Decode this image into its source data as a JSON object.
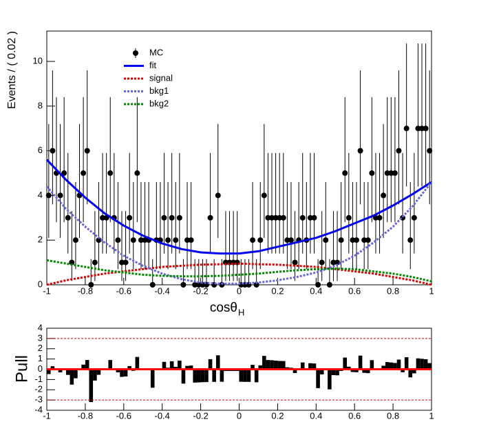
{
  "chart_data": [
    {
      "type": "scatter",
      "xlabel": "cosθ",
      "xlabel_sub": "H",
      "ylabel": "Events / ( 0.02 )",
      "xlim": [
        -1,
        1
      ],
      "xticks": [
        -1,
        -0.8,
        -0.6,
        -0.4,
        -0.2,
        0,
        0.2,
        0.4,
        0.6,
        0.8,
        1
      ],
      "ylim": [
        0,
        11.36
      ],
      "yticks": [
        0,
        2,
        4,
        6,
        8,
        10
      ],
      "curve_x": [
        -1,
        -0.9,
        -0.8,
        -0.7,
        -0.6,
        -0.5,
        -0.4,
        -0.3,
        -0.2,
        -0.1,
        0,
        0.1,
        0.2,
        0.3,
        0.4,
        0.5,
        0.6,
        0.7,
        0.8,
        0.9,
        1
      ],
      "series": [
        {
          "name": "MC",
          "color": "#000000",
          "x": [
            -0.99,
            -0.97,
            -0.95,
            -0.93,
            -0.91,
            -0.89,
            -0.87,
            -0.85,
            -0.83,
            -0.81,
            -0.79,
            -0.77,
            -0.75,
            -0.73,
            -0.71,
            -0.69,
            -0.67,
            -0.65,
            -0.63,
            -0.61,
            -0.59,
            -0.57,
            -0.55,
            -0.53,
            -0.51,
            -0.49,
            -0.47,
            -0.45,
            -0.43,
            -0.41,
            -0.39,
            -0.37,
            -0.35,
            -0.33,
            -0.31,
            -0.29,
            -0.27,
            -0.25,
            -0.23,
            -0.21,
            -0.19,
            -0.17,
            -0.15,
            -0.13,
            -0.11,
            -0.09,
            -0.07,
            -0.05,
            -0.03,
            -0.01,
            0.01,
            0.03,
            0.05,
            0.07,
            0.09,
            0.11,
            0.13,
            0.15,
            0.17,
            0.19,
            0.21,
            0.23,
            0.25,
            0.27,
            0.29,
            0.31,
            0.33,
            0.35,
            0.37,
            0.39,
            0.41,
            0.43,
            0.45,
            0.47,
            0.49,
            0.51,
            0.53,
            0.55,
            0.57,
            0.59,
            0.61,
            0.63,
            0.65,
            0.67,
            0.69,
            0.71,
            0.73,
            0.75,
            0.77,
            0.79,
            0.81,
            0.83,
            0.85,
            0.87,
            0.89,
            0.91,
            0.93,
            0.95,
            0.97,
            0.99
          ],
          "values": [
            4,
            6,
            5,
            4,
            5,
            3,
            1,
            2,
            4,
            5,
            6,
            0,
            1,
            2,
            3,
            3,
            5,
            3,
            2,
            1,
            1,
            3,
            2,
            5,
            2,
            2,
            2,
            0,
            2,
            2,
            3,
            2,
            3,
            2,
            3,
            0,
            2,
            2,
            0,
            0,
            0,
            0,
            3,
            0,
            4,
            0,
            1,
            1,
            1,
            1,
            0,
            0,
            0,
            2,
            0,
            2,
            4,
            3,
            3,
            3,
            3,
            3,
            2,
            2,
            1,
            2,
            3,
            2,
            3,
            3,
            0,
            1,
            2,
            0,
            1,
            1,
            2,
            5,
            3,
            2,
            2,
            6,
            2,
            2,
            5,
            3,
            3,
            4,
            5,
            5,
            5,
            6,
            3,
            7,
            2,
            3,
            7,
            7,
            7,
            6
          ],
          "yerr_low": [
            1.9,
            2.4,
            2.2,
            1.9,
            2.2,
            1.6,
            0.83,
            1.3,
            1.9,
            2.2,
            2.4,
            0,
            0.83,
            1.3,
            1.6,
            1.6,
            2.2,
            1.6,
            1.3,
            0.83,
            0.83,
            1.6,
            1.3,
            2.2,
            1.3,
            1.3,
            1.3,
            0,
            1.3,
            1.3,
            1.6,
            1.3,
            1.6,
            1.3,
            1.6,
            0,
            1.3,
            1.3,
            0,
            0,
            0,
            0,
            1.6,
            0,
            1.9,
            0,
            0.83,
            0.83,
            0.83,
            0.83,
            0,
            0,
            0,
            1.3,
            0,
            1.3,
            1.9,
            1.6,
            1.6,
            1.6,
            1.6,
            1.6,
            1.3,
            1.3,
            0.83,
            1.3,
            1.6,
            1.3,
            1.6,
            1.6,
            0,
            0.83,
            1.3,
            0,
            0.83,
            0.83,
            1.3,
            2.2,
            1.6,
            1.3,
            1.3,
            2.4,
            1.3,
            1.3,
            2.2,
            1.6,
            1.6,
            1.9,
            2.2,
            2.2,
            2.2,
            2.4,
            1.6,
            2.6,
            1.3,
            1.6,
            2.6,
            2.6,
            2.6,
            2.4
          ],
          "yerr_high": [
            3.2,
            3.6,
            3.4,
            3.2,
            3.4,
            2.9,
            2.3,
            2.6,
            3.2,
            3.4,
            3.6,
            1.15,
            2.3,
            2.6,
            2.9,
            2.9,
            3.4,
            2.9,
            2.6,
            2.3,
            2.3,
            2.9,
            2.6,
            3.4,
            2.6,
            2.6,
            2.6,
            1.15,
            2.6,
            2.6,
            2.9,
            2.6,
            2.9,
            2.6,
            2.9,
            1.15,
            2.6,
            2.6,
            1.15,
            1.15,
            1.15,
            1.15,
            2.9,
            1.15,
            3.2,
            1.15,
            2.3,
            2.3,
            2.3,
            2.3,
            1.15,
            1.15,
            1.15,
            2.6,
            1.15,
            2.6,
            3.2,
            2.9,
            2.9,
            2.9,
            2.9,
            2.9,
            2.6,
            2.6,
            2.3,
            2.6,
            2.9,
            2.6,
            2.9,
            2.9,
            1.15,
            2.3,
            2.6,
            1.15,
            2.3,
            2.3,
            2.6,
            3.4,
            2.9,
            2.6,
            2.6,
            3.6,
            2.6,
            2.6,
            3.4,
            2.9,
            2.9,
            3.2,
            3.4,
            3.4,
            3.4,
            3.6,
            2.9,
            3.8,
            2.6,
            2.9,
            3.8,
            3.8,
            3.8,
            3.6
          ]
        },
        {
          "name": "fit",
          "color": "#0000ee",
          "style": "solid",
          "values": [
            5.6,
            4.7,
            3.9,
            3.2,
            2.65,
            2.2,
            1.85,
            1.6,
            1.45,
            1.4,
            1.4,
            1.5,
            1.7,
            1.9,
            2.1,
            2.4,
            2.75,
            3.1,
            3.55,
            4.05,
            4.6
          ]
        },
        {
          "name": "signal",
          "color": "#dd0000",
          "style": "dashed",
          "values": [
            0,
            0.2,
            0.35,
            0.5,
            0.6,
            0.7,
            0.8,
            0.85,
            0.9,
            0.92,
            0.95,
            0.92,
            0.9,
            0.85,
            0.8,
            0.7,
            0.6,
            0.5,
            0.35,
            0.2,
            0
          ]
        },
        {
          "name": "bkg1",
          "color": "#6666dd",
          "style": "dashed",
          "values": [
            4.4,
            3.4,
            2.6,
            1.9,
            1.3,
            0.85,
            0.5,
            0.25,
            0.1,
            0.05,
            0.05,
            0.1,
            0.2,
            0.35,
            0.55,
            0.85,
            1.3,
            1.9,
            2.6,
            3.5,
            4.6
          ]
        },
        {
          "name": "bkg2",
          "color": "#008800",
          "style": "dashed",
          "values": [
            1.1,
            0.95,
            0.8,
            0.65,
            0.55,
            0.45,
            0.4,
            0.38,
            0.38,
            0.4,
            0.45,
            0.5,
            0.58,
            0.65,
            0.7,
            0.72,
            0.7,
            0.6,
            0.5,
            0.35,
            0.15
          ]
        }
      ]
    },
    {
      "type": "bar",
      "ylabel": "Pull",
      "color": "#000000",
      "xlim": [
        -1,
        1
      ],
      "xticks": [
        -1,
        -0.8,
        -0.6,
        -0.4,
        -0.2,
        0,
        0.2,
        0.4,
        0.6,
        0.8,
        1
      ],
      "ylim": [
        -4,
        4
      ],
      "yticks": [
        -4,
        -3,
        -2,
        -1,
        0,
        1,
        2,
        3,
        4
      ],
      "hlines": [
        {
          "y": 3,
          "color": "#cc0000",
          "style": "dashed"
        },
        {
          "y": -3,
          "color": "#cc0000",
          "style": "dashed"
        },
        {
          "y": 0,
          "color": "#ff0000",
          "style": "solid"
        }
      ],
      "values": [
        -0.47,
        0.29,
        -0.03,
        -0.3,
        0.09,
        -0.55,
        -1.5,
        -0.88,
        -0.05,
        0.45,
        0.9,
        -3.2,
        -1.1,
        -0.54,
        -0.1,
        -0.05,
        0.9,
        0.06,
        -0.3,
        -0.74,
        -0.7,
        0.31,
        -0.15,
        1.2,
        -0.1,
        -0.08,
        -0.04,
        -1.8,
        0.04,
        0.08,
        0.72,
        0.15,
        0.78,
        0.23,
        0.84,
        -1.4,
        0.33,
        0.36,
        -1.3,
        -1.28,
        -1.26,
        -1.25,
        0.98,
        -1.23,
        1.36,
        -1.22,
        -0.17,
        -0.17,
        -0.17,
        -0.17,
        -1.22,
        -1.23,
        -1.23,
        0.43,
        -1.27,
        0.38,
        1.3,
        0.9,
        0.88,
        0.84,
        0.81,
        0.8,
        0.19,
        0.15,
        -0.37,
        0.08,
        0.66,
        0,
        0.59,
        0.56,
        -1.84,
        -0.5,
        -0.08,
        -1.96,
        -0.57,
        -0.59,
        -0.17,
        1.14,
        0.25,
        -0.27,
        -0.29,
        1.33,
        -0.35,
        -0.38,
        0.89,
        -0.05,
        -0.09,
        0.34,
        0.7,
        0.66,
        0.61,
        0.94,
        -0.29,
        1.17,
        -0.79,
        -0.4,
        1.06,
        1.02,
        0.98,
        0.6
      ]
    }
  ]
}
